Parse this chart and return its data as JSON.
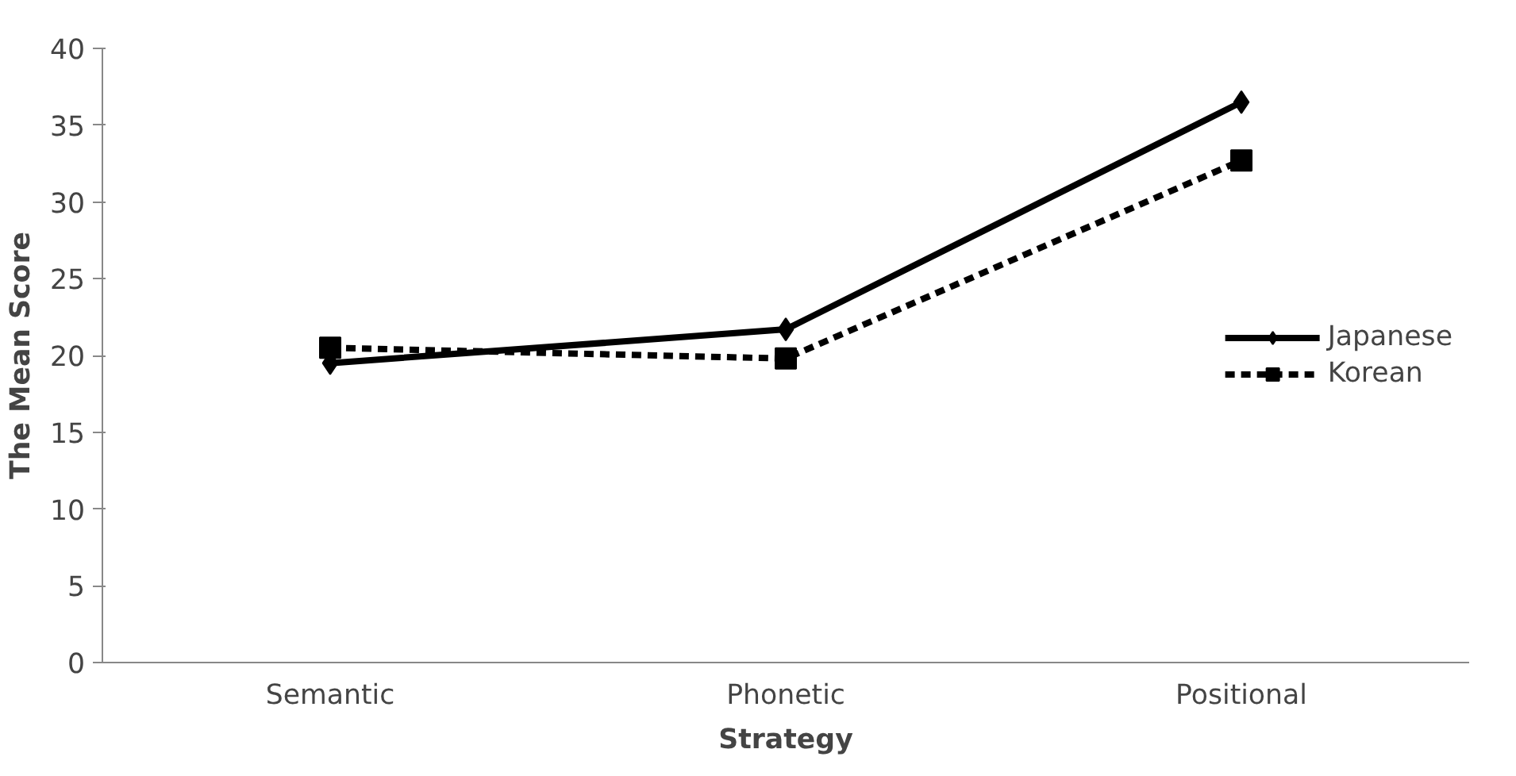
{
  "chart_data": {
    "type": "line",
    "xlabel": "Strategy",
    "ylabel": "The Mean Score",
    "categories": [
      "Semantic",
      "Phonetic",
      "Positional"
    ],
    "series": [
      {
        "name": "Japanese",
        "color": "#000000",
        "values": [
          19.5,
          21.7,
          36.5
        ],
        "marker": "diamond",
        "line_style": "solid"
      },
      {
        "name": "Korean",
        "color": "#000000",
        "values": [
          20.5,
          19.8,
          32.7
        ],
        "marker": "square",
        "line_style": "dashed"
      }
    ],
    "ylim": [
      0,
      40
    ],
    "yticks": [
      0,
      5,
      10,
      15,
      20,
      25,
      30,
      35,
      40
    ],
    "grid": false,
    "legend": "right"
  }
}
